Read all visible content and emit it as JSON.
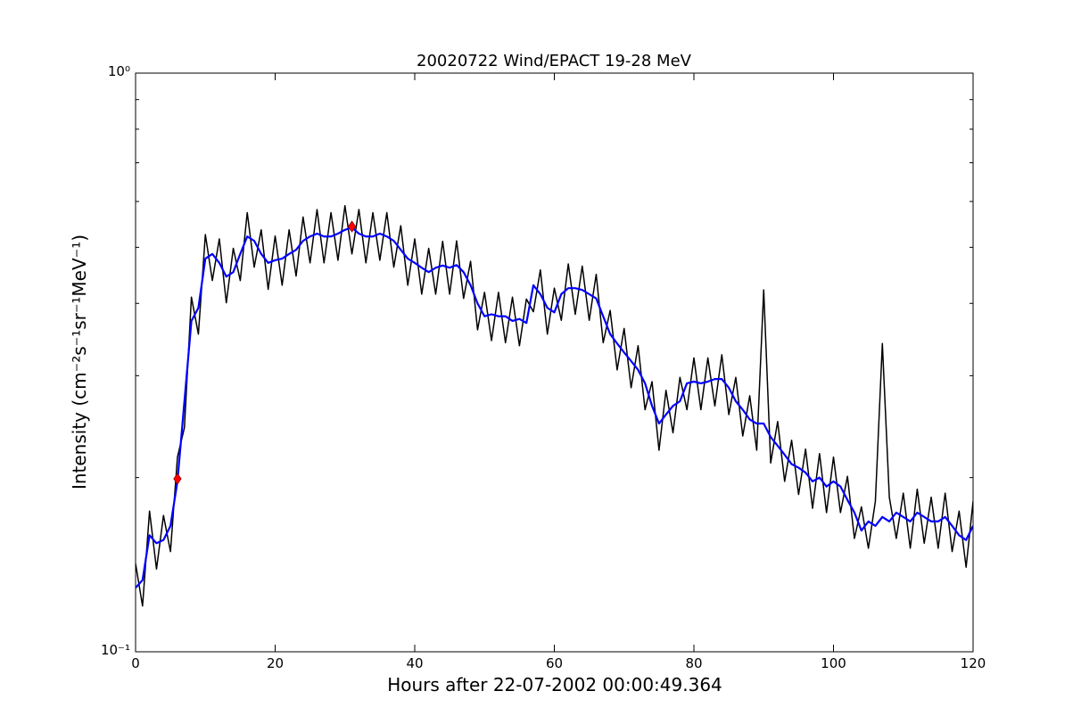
{
  "chart_data": {
    "type": "line",
    "title": "20020722 Wind/EPACT 19-28 MeV",
    "xlabel": "Hours after 22-07-2002 00:00:49.364",
    "ylabel": "Intensity (cm⁻²s⁻¹sr⁻¹MeV⁻¹)",
    "yscale": "log",
    "xlim": [
      0,
      120
    ],
    "ylim": [
      0.1,
      1
    ],
    "xticks": [
      0,
      20,
      40,
      60,
      80,
      100,
      120
    ],
    "yticks": [
      {
        "value": 0.1,
        "label": "10⁻¹"
      },
      {
        "value": 1,
        "label": "10⁰"
      }
    ],
    "yminorticks": [
      0.2,
      0.3,
      0.4,
      0.5,
      0.6,
      0.7,
      0.8,
      0.9
    ],
    "x": [
      0,
      1,
      2,
      3,
      4,
      5,
      6,
      7,
      8,
      9,
      10,
      11,
      12,
      13,
      14,
      15,
      16,
      17,
      18,
      19,
      20,
      21,
      22,
      23,
      24,
      25,
      26,
      27,
      28,
      29,
      30,
      31,
      32,
      33,
      34,
      35,
      36,
      37,
      38,
      39,
      40,
      41,
      42,
      43,
      44,
      45,
      46,
      47,
      48,
      49,
      50,
      51,
      52,
      53,
      54,
      55,
      56,
      57,
      58,
      59,
      60,
      61,
      62,
      63,
      64,
      65,
      66,
      67,
      68,
      69,
      70,
      71,
      72,
      73,
      74,
      75,
      76,
      77,
      78,
      79,
      80,
      81,
      82,
      83,
      84,
      85,
      86,
      87,
      88,
      89,
      90,
      91,
      92,
      93,
      94,
      95,
      96,
      97,
      98,
      99,
      100,
      101,
      102,
      103,
      104,
      105,
      106,
      107,
      108,
      109,
      110,
      111,
      112,
      113,
      114,
      115,
      116,
      117,
      118,
      119,
      120
    ],
    "series": [
      {
        "color": "#000000",
        "values": [
          0.142,
          0.12,
          0.175,
          0.139,
          0.172,
          0.149,
          0.217,
          0.244,
          0.41,
          0.354,
          0.526,
          0.438,
          0.517,
          0.401,
          0.498,
          0.438,
          0.574,
          0.462,
          0.536,
          0.423,
          0.523,
          0.43,
          0.536,
          0.446,
          0.564,
          0.47,
          0.581,
          0.47,
          0.574,
          0.475,
          0.59,
          0.487,
          0.581,
          0.47,
          0.574,
          0.475,
          0.574,
          0.462,
          0.545,
          0.43,
          0.517,
          0.415,
          0.498,
          0.415,
          0.512,
          0.415,
          0.513,
          0.408,
          0.473,
          0.36,
          0.418,
          0.345,
          0.418,
          0.342,
          0.41,
          0.338,
          0.407,
          0.387,
          0.457,
          0.354,
          0.425,
          0.374,
          0.468,
          0.383,
          0.464,
          0.374,
          0.449,
          0.342,
          0.389,
          0.307,
          0.362,
          0.286,
          0.338,
          0.262,
          0.293,
          0.223,
          0.283,
          0.239,
          0.298,
          0.262,
          0.322,
          0.262,
          0.322,
          0.266,
          0.326,
          0.257,
          0.298,
          0.236,
          0.277,
          0.223,
          0.422,
          0.212,
          0.25,
          0.197,
          0.232,
          0.187,
          0.224,
          0.177,
          0.22,
          0.174,
          0.217,
          0.174,
          0.201,
          0.157,
          0.178,
          0.151,
          0.182,
          0.341,
          0.185,
          0.157,
          0.188,
          0.151,
          0.191,
          0.154,
          0.185,
          0.151,
          0.188,
          0.149,
          0.175,
          0.14,
          0.182
        ]
      },
      {
        "color": "#0000ff",
        "values": [
          0.129,
          0.133,
          0.159,
          0.154,
          0.156,
          0.165,
          0.197,
          0.271,
          0.373,
          0.393,
          0.478,
          0.487,
          0.47,
          0.445,
          0.453,
          0.487,
          0.522,
          0.513,
          0.487,
          0.47,
          0.475,
          0.478,
          0.487,
          0.495,
          0.513,
          0.522,
          0.528,
          0.522,
          0.522,
          0.528,
          0.536,
          0.541,
          0.528,
          0.522,
          0.522,
          0.528,
          0.522,
          0.513,
          0.495,
          0.478,
          0.47,
          0.461,
          0.453,
          0.461,
          0.465,
          0.461,
          0.466,
          0.453,
          0.43,
          0.4,
          0.38,
          0.383,
          0.38,
          0.38,
          0.373,
          0.376,
          0.37,
          0.43,
          0.415,
          0.393,
          0.386,
          0.415,
          0.425,
          0.425,
          0.422,
          0.415,
          0.408,
          0.38,
          0.354,
          0.341,
          0.329,
          0.318,
          0.307,
          0.291,
          0.266,
          0.248,
          0.257,
          0.266,
          0.271,
          0.291,
          0.293,
          0.291,
          0.293,
          0.296,
          0.296,
          0.286,
          0.271,
          0.262,
          0.252,
          0.248,
          0.248,
          0.235,
          0.227,
          0.219,
          0.211,
          0.208,
          0.204,
          0.197,
          0.2,
          0.193,
          0.197,
          0.193,
          0.183,
          0.174,
          0.162,
          0.168,
          0.165,
          0.171,
          0.168,
          0.174,
          0.171,
          0.168,
          0.174,
          0.171,
          0.168,
          0.168,
          0.171,
          0.165,
          0.159,
          0.156,
          0.165
        ]
      }
    ],
    "markers": {
      "x": [
        6,
        31
      ],
      "values": [
        0.199,
        0.543
      ],
      "color": "#ff0000"
    }
  }
}
